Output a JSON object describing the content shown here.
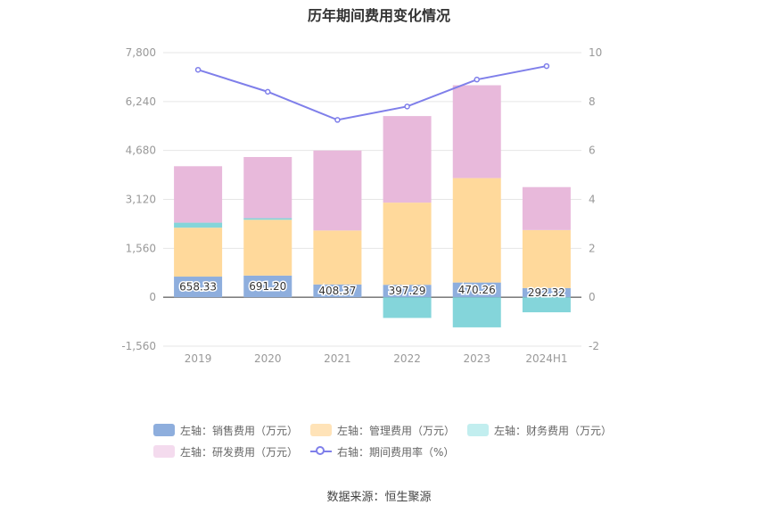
{
  "chart_data": {
    "type": "bar",
    "title": "历年期间费用变化情况",
    "source": "数据来源：恒生聚源",
    "categories": [
      "2019",
      "2020",
      "2021",
      "2022",
      "2023",
      "2024H1"
    ],
    "left_axis": {
      "ylim": [
        -1560,
        7800
      ],
      "ticks": [
        "-1,560",
        "0",
        "1,560",
        "3,120",
        "4,680",
        "6,240",
        "7,800"
      ],
      "tick_values": [
        -1560,
        0,
        1560,
        3120,
        4680,
        6240,
        7800
      ]
    },
    "right_axis": {
      "ylim": [
        -2,
        10
      ],
      "ticks": [
        "-2",
        "0",
        "2",
        "4",
        "6",
        "8",
        "10"
      ],
      "tick_values": [
        -2,
        0,
        2,
        4,
        6,
        8,
        10
      ]
    },
    "grid": true,
    "legend_position": "bottom",
    "series": [
      {
        "name": "左轴：销售费用（万元）",
        "kind": "bar",
        "axis": "left",
        "color": "#8eaedd",
        "values": [
          658.33,
          691.2,
          408.37,
          397.29,
          470.26,
          292.32
        ],
        "labels": [
          "658.33",
          "691.20",
          "408.37",
          "397.29",
          "470.26",
          "292.32"
        ]
      },
      {
        "name": "左轴：管理费用（万元）",
        "kind": "bar",
        "axis": "left",
        "color": "#ffd99b",
        "values": [
          1560,
          1780,
          1720,
          2620,
          3330,
          1850
        ]
      },
      {
        "name": "左轴：财务费用（万元）",
        "kind": "bar",
        "axis": "left",
        "color": "#84d5da",
        "values": [
          160,
          50,
          0,
          -660,
          -960,
          -480
        ]
      },
      {
        "name": "左轴：研发费用（万元）",
        "kind": "bar",
        "axis": "left",
        "color": "#e8b9db",
        "values": [
          1800,
          1950,
          2550,
          2760,
          2960,
          1370
        ]
      },
      {
        "name": "右轴：期间费用率（%）",
        "kind": "line",
        "axis": "right",
        "color": "#7f7fea",
        "values": [
          9.3,
          8.4,
          7.25,
          7.8,
          8.9,
          9.45
        ]
      }
    ],
    "legend": [
      {
        "label": "左轴：销售费用（万元）",
        "color": "#8eaedd",
        "kind": "bar"
      },
      {
        "label": "左轴：管理费用（万元）",
        "color": "#ffe3b8",
        "kind": "bar"
      },
      {
        "label": "左轴：财务费用（万元）",
        "color": "#c2eeef",
        "kind": "bar"
      },
      {
        "label": "左轴：研发费用（万元）",
        "color": "#f4dbee",
        "kind": "bar"
      },
      {
        "label": "右轴：期间费用率（%）",
        "color": "#7f7fea",
        "kind": "line"
      }
    ]
  }
}
